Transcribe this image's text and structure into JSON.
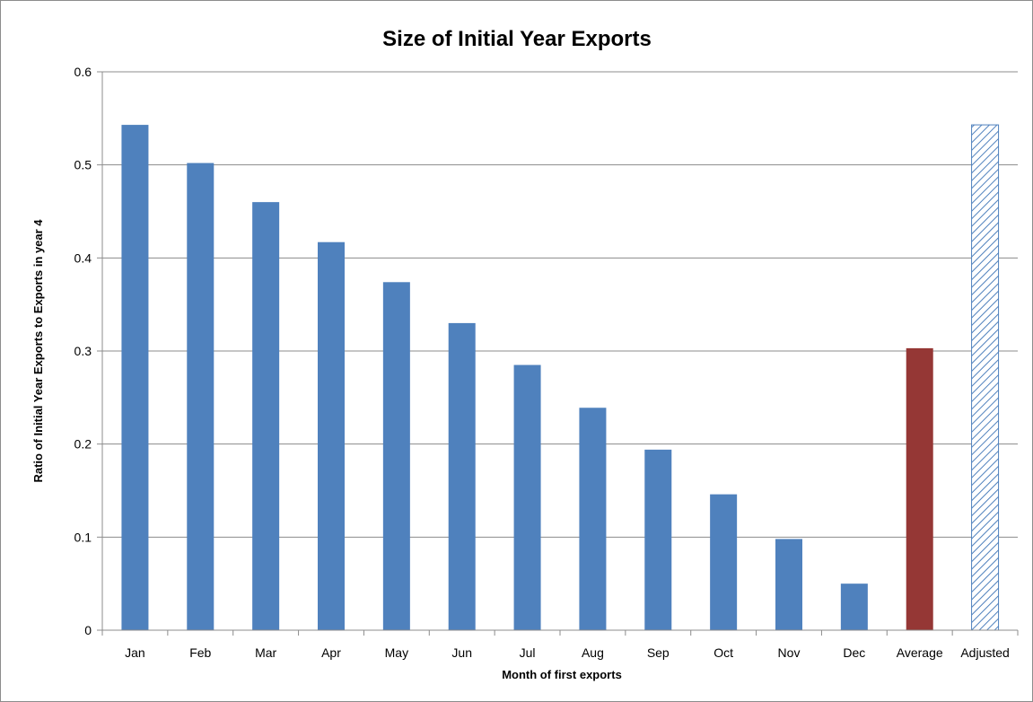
{
  "chart_data": {
    "type": "bar",
    "title": "Size of Initial Year Exports",
    "xlabel": "Month of first exports",
    "ylabel": "Ratio of Initial Year Exports to Exports in year 4",
    "categories": [
      "Jan",
      "Feb",
      "Mar",
      "Apr",
      "May",
      "Jun",
      "Jul",
      "Aug",
      "Sep",
      "Oct",
      "Nov",
      "Dec",
      "Average",
      "Adjusted"
    ],
    "values": [
      0.543,
      0.502,
      0.46,
      0.417,
      0.374,
      0.33,
      0.285,
      0.239,
      0.194,
      0.146,
      0.098,
      0.05,
      0.303,
      0.543
    ],
    "bar_styles": [
      "solid",
      "solid",
      "solid",
      "solid",
      "solid",
      "solid",
      "solid",
      "solid",
      "solid",
      "solid",
      "solid",
      "solid",
      "solid",
      "hatched"
    ],
    "bar_colors": [
      "#4f81bd",
      "#4f81bd",
      "#4f81bd",
      "#4f81bd",
      "#4f81bd",
      "#4f81bd",
      "#4f81bd",
      "#4f81bd",
      "#4f81bd",
      "#4f81bd",
      "#4f81bd",
      "#4f81bd",
      "#953735",
      "#4f81bd"
    ],
    "ylim": [
      0,
      0.6
    ],
    "yticks": [
      "0",
      "0.1",
      "0.2",
      "0.3",
      "0.4",
      "0.5",
      "0.6"
    ],
    "grid": true,
    "legend": "none"
  }
}
